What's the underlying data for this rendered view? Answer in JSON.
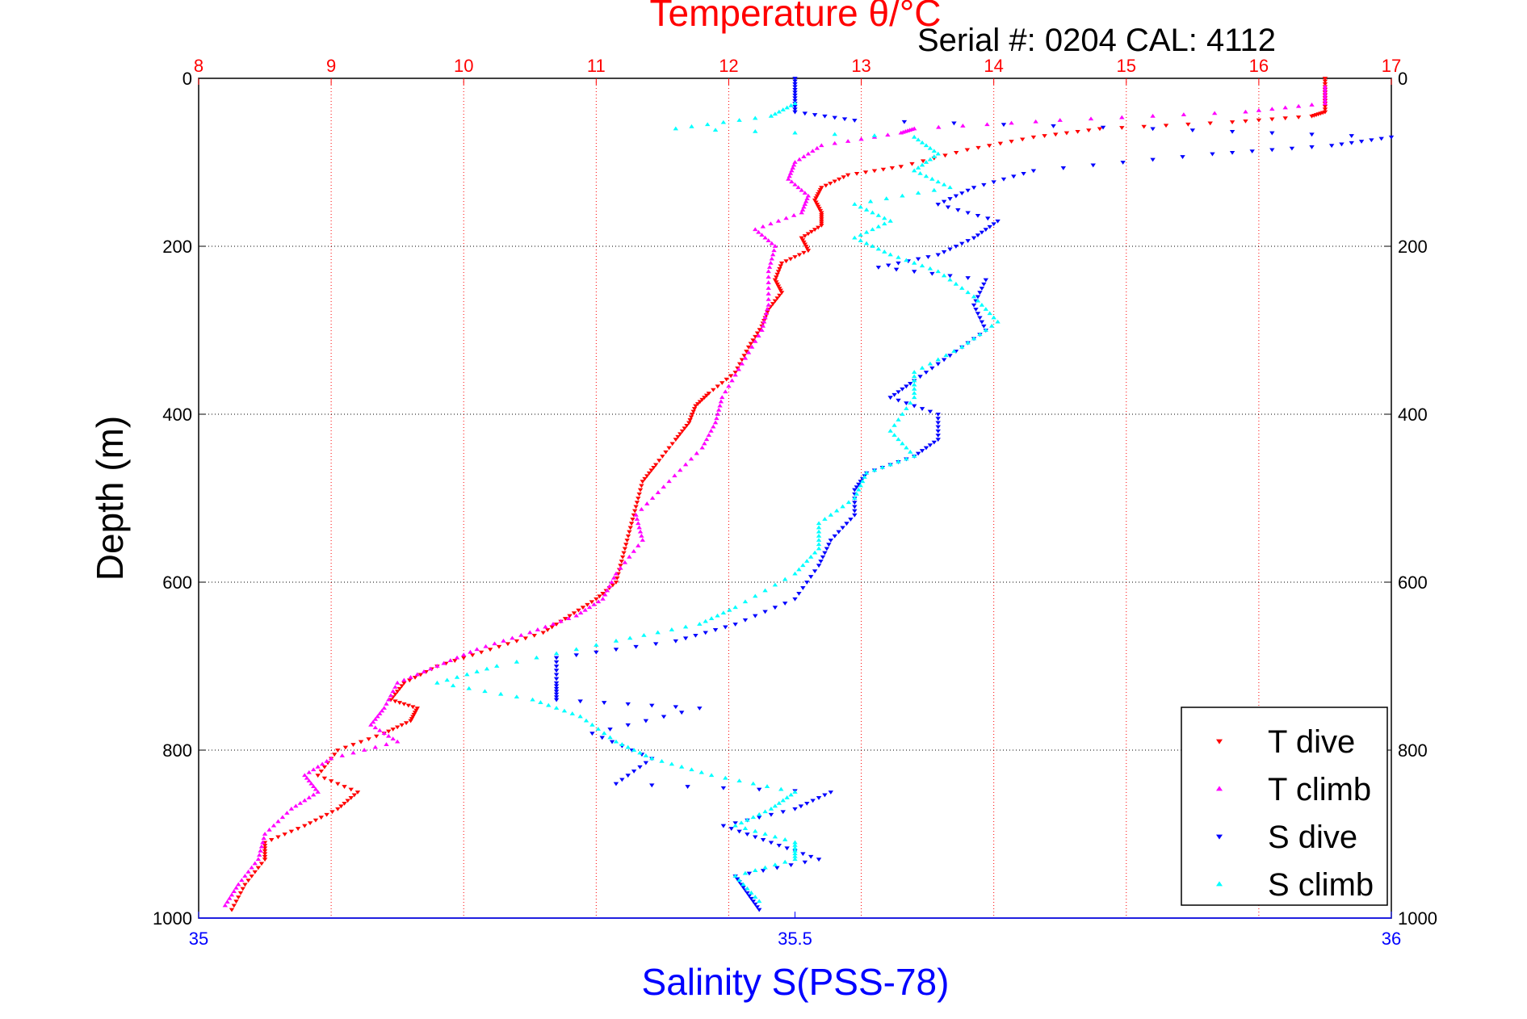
{
  "chart_data": {
    "type": "scatter",
    "title": "Temperature θ/°C",
    "subtitle": "Serial #: 0204  CAL: 4112",
    "top_axis": {
      "label": "Temperature θ/°C",
      "range": [
        8,
        17
      ],
      "ticks": [
        8,
        9,
        10,
        11,
        12,
        13,
        14,
        15,
        16,
        17
      ],
      "color": "#ff0000"
    },
    "bottom_axis": {
      "label": "Salinity S(PSS-78)",
      "range": [
        35,
        36
      ],
      "ticks": [
        35,
        35.5,
        36
      ],
      "color": "#0000ff"
    },
    "y_axis": {
      "label": "Depth (m)",
      "range": [
        0,
        1000
      ],
      "reversed": true,
      "ticks": [
        0,
        200,
        400,
        600,
        800,
        1000
      ]
    },
    "grid": true,
    "legend_position": "bottom-right",
    "series": [
      {
        "name": "T dive",
        "axis": "top",
        "color": "#ff0000",
        "marker": "triangle-down",
        "points": [
          [
            16.5,
            0
          ],
          [
            16.5,
            20
          ],
          [
            16.5,
            40
          ],
          [
            16.4,
            45
          ],
          [
            15.8,
            52
          ],
          [
            14.8,
            60
          ],
          [
            14.3,
            70
          ],
          [
            13.8,
            85
          ],
          [
            13.3,
            105
          ],
          [
            12.9,
            115
          ],
          [
            12.7,
            130
          ],
          [
            12.65,
            145
          ],
          [
            12.7,
            160
          ],
          [
            12.7,
            175
          ],
          [
            12.55,
            190
          ],
          [
            12.6,
            205
          ],
          [
            12.4,
            220
          ],
          [
            12.35,
            240
          ],
          [
            12.4,
            255
          ],
          [
            12.3,
            275
          ],
          [
            12.25,
            295
          ],
          [
            12.15,
            320
          ],
          [
            12.05,
            350
          ],
          [
            11.85,
            375
          ],
          [
            11.75,
            390
          ],
          [
            11.7,
            410
          ],
          [
            11.6,
            430
          ],
          [
            11.45,
            460
          ],
          [
            11.35,
            480
          ],
          [
            11.3,
            510
          ],
          [
            11.25,
            540
          ],
          [
            11.2,
            570
          ],
          [
            11.15,
            600
          ],
          [
            11.0,
            620
          ],
          [
            10.8,
            640
          ],
          [
            10.6,
            660
          ],
          [
            10.2,
            680
          ],
          [
            9.8,
            700
          ],
          [
            9.55,
            720
          ],
          [
            9.45,
            740
          ],
          [
            9.65,
            750
          ],
          [
            9.6,
            765
          ],
          [
            9.4,
            780
          ],
          [
            9.05,
            800
          ],
          [
            8.9,
            830
          ],
          [
            9.2,
            850
          ],
          [
            9.05,
            870
          ],
          [
            8.8,
            890
          ],
          [
            8.5,
            910
          ],
          [
            8.5,
            930
          ],
          [
            8.35,
            960
          ],
          [
            8.25,
            990
          ]
        ]
      },
      {
        "name": "T climb",
        "axis": "top",
        "color": "#ff00ff",
        "marker": "triangle-up",
        "points": [
          [
            16.5,
            10
          ],
          [
            16.5,
            30
          ],
          [
            15.9,
            40
          ],
          [
            14.5,
            50
          ],
          [
            13.4,
            60
          ],
          [
            13.3,
            65
          ],
          [
            12.7,
            80
          ],
          [
            12.5,
            100
          ],
          [
            12.45,
            120
          ],
          [
            12.6,
            140
          ],
          [
            12.55,
            160
          ],
          [
            12.2,
            180
          ],
          [
            12.35,
            200
          ],
          [
            12.3,
            230
          ],
          [
            12.3,
            270
          ],
          [
            12.25,
            300
          ],
          [
            12.1,
            340
          ],
          [
            11.95,
            380
          ],
          [
            11.9,
            410
          ],
          [
            11.8,
            440
          ],
          [
            11.55,
            480
          ],
          [
            11.3,
            520
          ],
          [
            11.35,
            550
          ],
          [
            11.15,
            590
          ],
          [
            11.05,
            620
          ],
          [
            10.85,
            640
          ],
          [
            10.5,
            660
          ],
          [
            10.1,
            680
          ],
          [
            9.8,
            700
          ],
          [
            9.5,
            720
          ],
          [
            9.4,
            750
          ],
          [
            9.3,
            770
          ],
          [
            9.5,
            790
          ],
          [
            9.0,
            810
          ],
          [
            8.8,
            830
          ],
          [
            8.9,
            850
          ],
          [
            8.7,
            870
          ],
          [
            8.5,
            900
          ],
          [
            8.45,
            930
          ],
          [
            8.3,
            960
          ],
          [
            8.2,
            985
          ]
        ]
      },
      {
        "name": "S dive",
        "axis": "bottom",
        "color": "#0000ff",
        "marker": "triangle-down",
        "points": [
          [
            35.5,
            0
          ],
          [
            35.5,
            20
          ],
          [
            35.5,
            40
          ],
          [
            35.55,
            50
          ],
          [
            35.8,
            60
          ],
          [
            36.0,
            70
          ],
          [
            35.95,
            80
          ],
          [
            35.85,
            90
          ],
          [
            35.7,
            110
          ],
          [
            35.65,
            130
          ],
          [
            35.62,
            150
          ],
          [
            35.67,
            170
          ],
          [
            35.65,
            190
          ],
          [
            35.62,
            210
          ],
          [
            35.57,
            225
          ],
          [
            35.66,
            240
          ],
          [
            35.65,
            270
          ],
          [
            35.66,
            300
          ],
          [
            35.63,
            330
          ],
          [
            35.6,
            360
          ],
          [
            35.58,
            380
          ],
          [
            35.62,
            400
          ],
          [
            35.62,
            430
          ],
          [
            35.6,
            450
          ],
          [
            35.56,
            470
          ],
          [
            35.55,
            490
          ],
          [
            35.55,
            520
          ],
          [
            35.53,
            550
          ],
          [
            35.52,
            580
          ],
          [
            35.5,
            620
          ],
          [
            35.45,
            650
          ],
          [
            35.4,
            670
          ],
          [
            35.3,
            690
          ],
          [
            35.3,
            720
          ],
          [
            35.3,
            740
          ],
          [
            35.42,
            750
          ],
          [
            35.33,
            780
          ],
          [
            35.38,
            810
          ],
          [
            35.35,
            840
          ],
          [
            35.53,
            850
          ],
          [
            35.5,
            870
          ],
          [
            35.44,
            890
          ],
          [
            35.48,
            910
          ],
          [
            35.52,
            930
          ],
          [
            35.45,
            950
          ],
          [
            35.46,
            970
          ],
          [
            35.47,
            990
          ]
        ]
      },
      {
        "name": "S climb",
        "axis": "bottom",
        "color": "#00ffff",
        "marker": "triangle-up",
        "points": [
          [
            35.5,
            30
          ],
          [
            35.48,
            45
          ],
          [
            35.4,
            60
          ],
          [
            35.6,
            70
          ],
          [
            35.62,
            90
          ],
          [
            35.6,
            110
          ],
          [
            35.63,
            130
          ],
          [
            35.55,
            150
          ],
          [
            35.58,
            170
          ],
          [
            35.55,
            190
          ],
          [
            35.58,
            210
          ],
          [
            35.62,
            230
          ],
          [
            35.65,
            260
          ],
          [
            35.67,
            290
          ],
          [
            35.64,
            320
          ],
          [
            35.6,
            350
          ],
          [
            35.6,
            380
          ],
          [
            35.58,
            420
          ],
          [
            35.6,
            450
          ],
          [
            35.56,
            470
          ],
          [
            35.55,
            500
          ],
          [
            35.52,
            530
          ],
          [
            35.52,
            560
          ],
          [
            35.5,
            590
          ],
          [
            35.45,
            630
          ],
          [
            35.42,
            650
          ],
          [
            35.35,
            670
          ],
          [
            35.25,
            700
          ],
          [
            35.2,
            720
          ],
          [
            35.28,
            740
          ],
          [
            35.32,
            760
          ],
          [
            35.35,
            790
          ],
          [
            35.38,
            810
          ],
          [
            35.43,
            830
          ],
          [
            35.5,
            850
          ],
          [
            35.48,
            870
          ],
          [
            35.45,
            890
          ],
          [
            35.5,
            910
          ],
          [
            35.5,
            930
          ],
          [
            35.45,
            950
          ],
          [
            35.47,
            980
          ]
        ]
      }
    ]
  },
  "legend": {
    "items": [
      {
        "label": "T dive",
        "color": "#ff0000",
        "marker": "triangle-down"
      },
      {
        "label": "T climb",
        "color": "#ff00ff",
        "marker": "triangle-up"
      },
      {
        "label": "S dive",
        "color": "#0000ff",
        "marker": "triangle-down"
      },
      {
        "label": "S climb",
        "color": "#00ffff",
        "marker": "triangle-up"
      }
    ]
  }
}
